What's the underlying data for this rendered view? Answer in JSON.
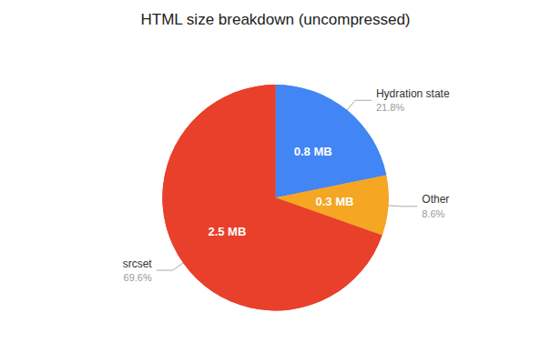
{
  "chart_data": {
    "type": "pie",
    "title": "HTML size breakdown (uncompressed)",
    "categories": [
      "Hydration state",
      "Other",
      "srcset"
    ],
    "values": [
      21.8,
      8.6,
      69.6
    ],
    "value_labels": [
      "21.8%",
      "8.6%",
      "69.6%"
    ],
    "inner_labels": [
      "0.8 MB",
      "0.3 MB",
      "2.5 MB"
    ],
    "colors": [
      "#4285f4",
      "#f5a623",
      "#e8402a"
    ],
    "data_labels": true
  }
}
